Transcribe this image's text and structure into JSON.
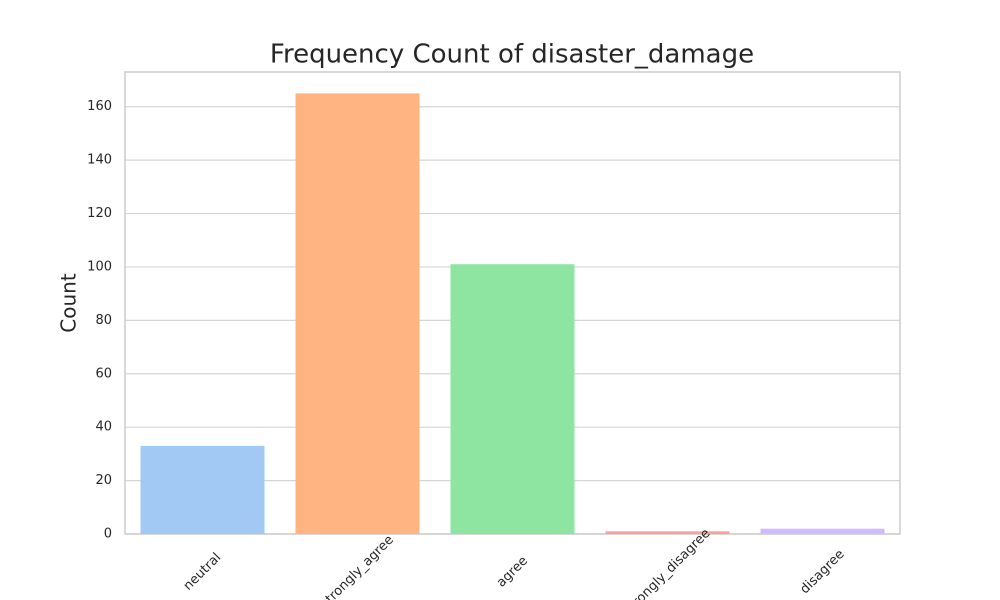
{
  "chart_data": {
    "type": "bar",
    "title": "Frequency Count of disaster_damage",
    "y_label": "Count",
    "categories": [
      "neutral",
      "strongly_agree",
      "agree",
      "strongly_disagree",
      "disagree"
    ],
    "values": [
      33,
      165,
      101,
      1,
      2
    ],
    "colors": [
      "#a1c9f4",
      "#ffb482",
      "#8de5a1",
      "#ff9f9b",
      "#d0bbff"
    ],
    "ylim": [
      0,
      173
    ],
    "yticks": [
      0,
      20,
      40,
      60,
      80,
      100,
      120,
      140,
      160
    ],
    "grid": true
  }
}
